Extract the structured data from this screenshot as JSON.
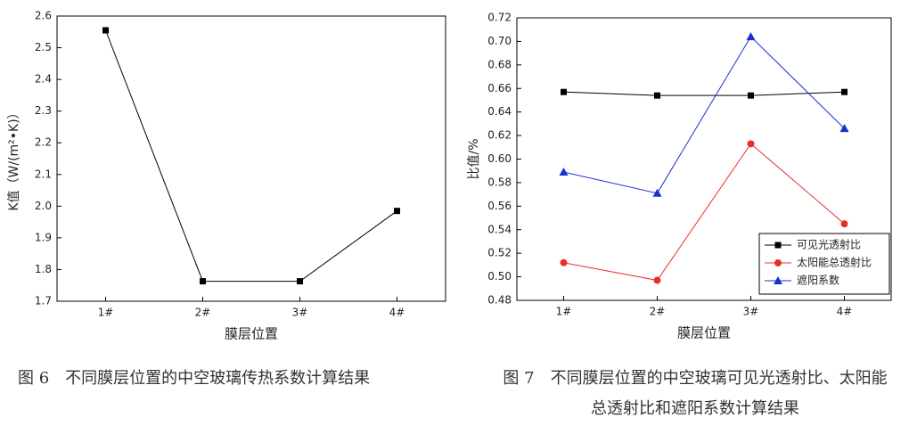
{
  "chart_data": [
    {
      "type": "line",
      "caption": "图 6　不同膜层位置的中空玻璃传热系数计算结果",
      "xlabel": "膜层位置",
      "ylabel": "K值（W/(m²•K)）",
      "categories": [
        "1#",
        "2#",
        "3#",
        "4#"
      ],
      "values": [
        2.555,
        1.763,
        1.763,
        1.985
      ],
      "color": "#000000",
      "marker": "square",
      "ylim": [
        1.7,
        2.6
      ],
      "yticks": [
        1.7,
        1.8,
        1.9,
        {
          "value": 2,
          "label": "2.0"
        },
        2.1,
        2.2,
        2.3,
        2.4,
        2.5,
        2.6
      ]
    },
    {
      "type": "line",
      "caption": "图 7　不同膜层位置的中空玻璃可见光透射比、太阳能总透射比和遮阳系数计算结果",
      "xlabel": "膜层位置",
      "ylabel": "比值/%",
      "categories": [
        "1#",
        "2#",
        "3#",
        "4#"
      ],
      "series": [
        {
          "name": "可见光透射比",
          "color": "#000000",
          "marker": "square",
          "values": [
            0.657,
            0.654,
            0.654,
            0.657
          ]
        },
        {
          "name": "太阳能总透射比",
          "color": "#e8302a",
          "marker": "circle",
          "values": [
            0.512,
            0.497,
            0.613,
            0.545
          ]
        },
        {
          "name": "遮阳系数",
          "color": "#1a2fd0",
          "marker": "triangle",
          "values": [
            0.589,
            0.571,
            0.704,
            0.626
          ]
        }
      ],
      "legend": "lower-right",
      "ylim": [
        0.48,
        0.72
      ],
      "yticks": [
        0.48,
        {
          "value": 0.5,
          "label": "0.50"
        },
        0.52,
        0.54,
        0.56,
        0.58,
        {
          "value": 0.6,
          "label": "0.60"
        },
        0.62,
        0.64,
        0.66,
        0.68,
        {
          "value": 0.7,
          "label": "0.70"
        },
        0.72
      ]
    }
  ]
}
